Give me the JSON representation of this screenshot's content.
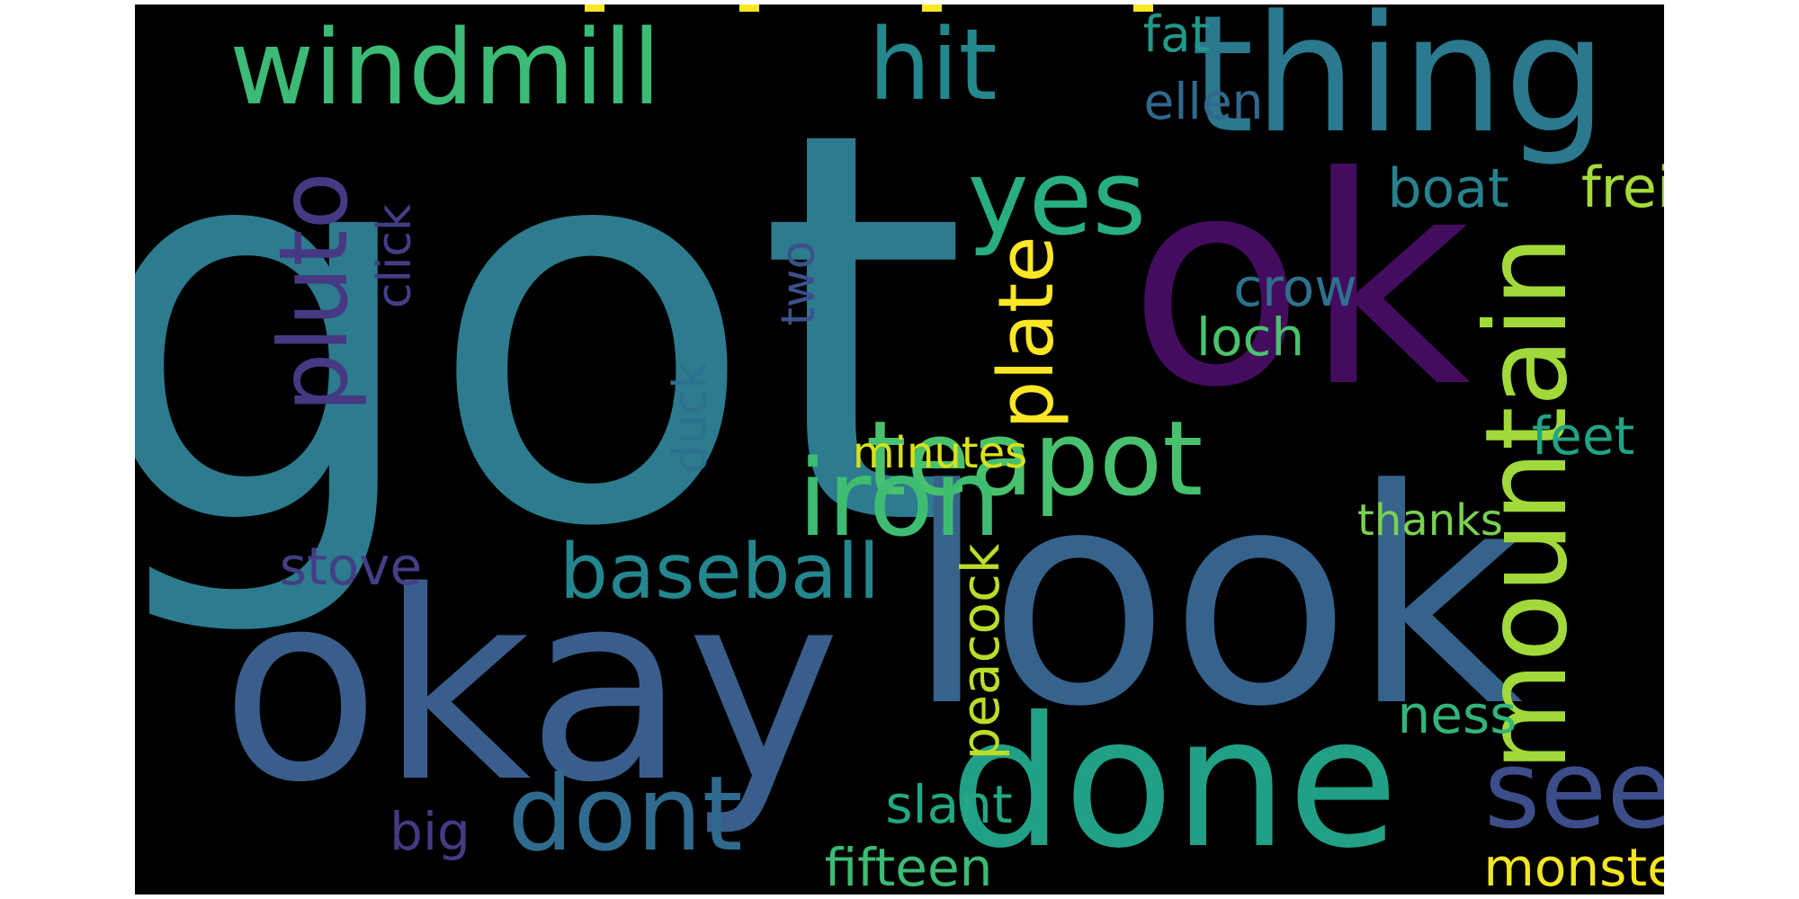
{
  "background_color": "#000000",
  "words": [
    {
      "id": "got",
      "text": "got",
      "color": "#2d7b8e"
    },
    {
      "id": "look",
      "text": "look",
      "color": "#36638c"
    },
    {
      "id": "okay",
      "text": "okay",
      "color": "#3a5e8c"
    },
    {
      "id": "ok",
      "text": "ok",
      "color": "#440c5e"
    },
    {
      "id": "done",
      "text": "done",
      "color": "#21a086"
    },
    {
      "id": "thing",
      "text": "thing",
      "color": "#2a798e"
    },
    {
      "id": "windmill",
      "text": "windmill",
      "color": "#3bbb76"
    },
    {
      "id": "mountain",
      "text": "mountain",
      "color": "#a2d93a"
    },
    {
      "id": "teapot",
      "text": "teapot",
      "color": "#48c16e"
    },
    {
      "id": "iron",
      "text": "iron",
      "color": "#3ebd72"
    },
    {
      "id": "yes",
      "text": "yes",
      "color": "#28ae80"
    },
    {
      "id": "dont",
      "text": "dont",
      "color": "#2f6b8e"
    },
    {
      "id": "see",
      "text": "see",
      "color": "#3d4d8a"
    },
    {
      "id": "hit",
      "text": "hit",
      "color": "#23888e"
    },
    {
      "id": "pluto",
      "text": "pluto",
      "color": "#463882"
    },
    {
      "id": "baseball",
      "text": "baseball",
      "color": "#24868e"
    },
    {
      "id": "plate",
      "text": "plate",
      "color": "#fde725"
    },
    {
      "id": "freight",
      "text": "freight",
      "color": "#a5db36"
    },
    {
      "id": "boat",
      "text": "boat",
      "color": "#26828e"
    },
    {
      "id": "crow",
      "text": "crow",
      "color": "#2d718e"
    },
    {
      "id": "loch",
      "text": "loch",
      "color": "#4ac16d"
    },
    {
      "id": "feet",
      "text": "feet",
      "color": "#20a386"
    },
    {
      "id": "minutes",
      "text": "minutes",
      "color": "#d8e219"
    },
    {
      "id": "thanks",
      "text": "thanks",
      "color": "#7ad151"
    },
    {
      "id": "ness",
      "text": "ness",
      "color": "#31b57b"
    },
    {
      "id": "monster",
      "text": "monster",
      "color": "#f4e61e"
    },
    {
      "id": "fifteen",
      "text": "fifteen",
      "color": "#3bbb75"
    },
    {
      "id": "slant",
      "text": "slant",
      "color": "#22a884"
    },
    {
      "id": "big",
      "text": "big",
      "color": "#443a83"
    },
    {
      "id": "stove",
      "text": "stove",
      "color": "#423f85"
    },
    {
      "id": "peacock",
      "text": "peacock",
      "color": "#b8de29"
    },
    {
      "id": "duck",
      "text": "duck",
      "color": "#2c728e"
    },
    {
      "id": "two",
      "text": "two",
      "color": "#3b518b"
    },
    {
      "id": "click",
      "text": "click",
      "color": "#433e85"
    },
    {
      "id": "ellen",
      "text": "ellen",
      "color": "#31688e"
    },
    {
      "id": "fat",
      "text": "fat",
      "color": "#1f9a8a"
    }
  ]
}
